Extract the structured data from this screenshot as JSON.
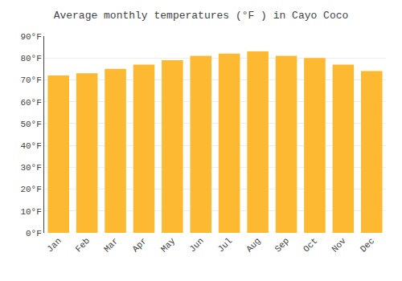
{
  "chart_data": {
    "type": "bar",
    "title": "Average monthly temperatures (°F ) in Cayo Coco",
    "categories": [
      "Jan",
      "Feb",
      "Mar",
      "Apr",
      "May",
      "Jun",
      "Jul",
      "Aug",
      "Sep",
      "Oct",
      "Nov",
      "Dec"
    ],
    "values": [
      72,
      73,
      75,
      77,
      79,
      81,
      82,
      83,
      81,
      80,
      77,
      74
    ],
    "color": "#FDB931",
    "ylim": [
      0,
      90
    ],
    "yticks": [
      {
        "value": 0,
        "label": "0°F"
      },
      {
        "value": 10,
        "label": "10°F"
      },
      {
        "value": 20,
        "label": "20°F"
      },
      {
        "value": 30,
        "label": "30°F"
      },
      {
        "value": 40,
        "label": "40°F"
      },
      {
        "value": 50,
        "label": "50°F"
      },
      {
        "value": 60,
        "label": "60°F"
      },
      {
        "value": 70,
        "label": "70°F"
      },
      {
        "value": 80,
        "label": "80°F"
      },
      {
        "value": 90,
        "label": "90°F"
      }
    ],
    "grid": true
  }
}
